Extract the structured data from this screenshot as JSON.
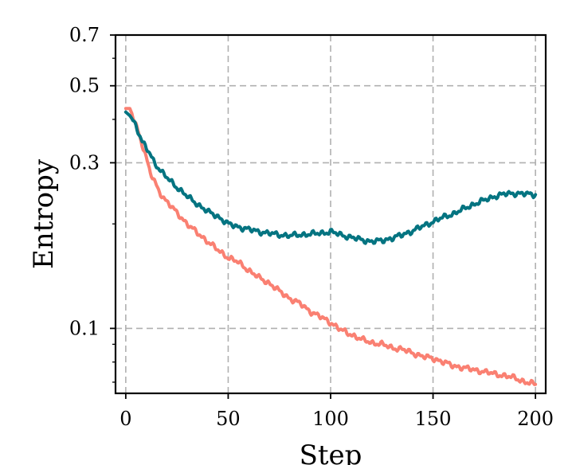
{
  "chart_data": {
    "type": "line",
    "title": "",
    "xlabel": "Step",
    "ylabel": "Entropy",
    "xlim": [
      -5,
      205
    ],
    "ylim": [
      0.065,
      0.7
    ],
    "yscale": "log",
    "grid": true,
    "x_ticks": [
      0,
      50,
      100,
      150,
      200
    ],
    "x_tick_labels": [
      "0",
      "50",
      "100",
      "150",
      "200"
    ],
    "y_ticks": [
      0.1,
      0.3,
      0.5,
      0.7
    ],
    "y_tick_labels": [
      "0.1",
      "0.3",
      "0.5",
      "0.7"
    ],
    "series": [
      {
        "color": "#fa8072",
        "x": [
          0,
          2,
          4,
          6,
          8,
          10,
          12,
          14,
          16,
          18,
          20,
          25,
          30,
          35,
          40,
          45,
          50,
          55,
          60,
          65,
          70,
          75,
          80,
          85,
          90,
          95,
          100,
          105,
          110,
          115,
          120,
          125,
          130,
          135,
          140,
          145,
          150,
          155,
          160,
          165,
          170,
          175,
          180,
          185,
          190,
          195,
          200
        ],
        "y": [
          0.43,
          0.43,
          0.4,
          0.37,
          0.34,
          0.31,
          0.28,
          0.265,
          0.25,
          0.24,
          0.232,
          0.215,
          0.2,
          0.188,
          0.178,
          0.168,
          0.16,
          0.155,
          0.147,
          0.14,
          0.135,
          0.128,
          0.122,
          0.118,
          0.112,
          0.108,
          0.104,
          0.099,
          0.096,
          0.093,
          0.091,
          0.09,
          0.088,
          0.087,
          0.085,
          0.083,
          0.082,
          0.08,
          0.078,
          0.077,
          0.076,
          0.075,
          0.074,
          0.073,
          0.072,
          0.07,
          0.069
        ]
      },
      {
        "color": "#047481",
        "x": [
          0,
          2,
          4,
          6,
          8,
          10,
          12,
          14,
          16,
          18,
          20,
          25,
          30,
          35,
          40,
          45,
          50,
          55,
          60,
          65,
          70,
          75,
          80,
          85,
          90,
          95,
          100,
          105,
          110,
          115,
          120,
          125,
          130,
          135,
          140,
          145,
          150,
          155,
          160,
          165,
          170,
          175,
          180,
          185,
          190,
          195,
          200
        ],
        "y": [
          0.42,
          0.41,
          0.395,
          0.37,
          0.345,
          0.33,
          0.318,
          0.3,
          0.29,
          0.28,
          0.272,
          0.255,
          0.24,
          0.228,
          0.217,
          0.21,
          0.2,
          0.196,
          0.193,
          0.19,
          0.188,
          0.186,
          0.185,
          0.186,
          0.187,
          0.188,
          0.19,
          0.186,
          0.183,
          0.18,
          0.178,
          0.179,
          0.182,
          0.186,
          0.191,
          0.197,
          0.203,
          0.209,
          0.214,
          0.221,
          0.228,
          0.234,
          0.24,
          0.244,
          0.245,
          0.244,
          0.243
        ]
      }
    ]
  }
}
